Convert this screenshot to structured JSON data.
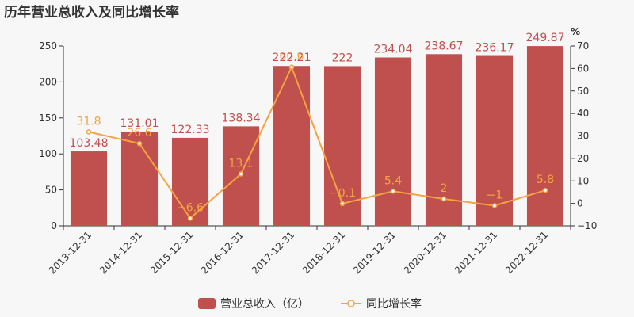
{
  "title": "历年营业总收入及同比增长率",
  "right_axis_unit": "%",
  "colors": {
    "bar": "#c0504d",
    "line": "#f4a340",
    "axis": "#333333",
    "grid": "#e6e6e6"
  },
  "chart_data": {
    "type": "bar",
    "title": "历年营业总收入及同比增长率",
    "categories": [
      "2013-12-31",
      "2014-12-31",
      "2015-12-31",
      "2016-12-31",
      "2017-12-31",
      "2018-12-31",
      "2019-12-31",
      "2020-12-31",
      "2021-12-31",
      "2022-12-31"
    ],
    "series": [
      {
        "name": "营业总收入（亿）",
        "type": "bar",
        "axis": "left",
        "values": [
          103.48,
          131.01,
          122.33,
          138.34,
          222.21,
          222,
          234.04,
          238.67,
          236.17,
          249.87
        ],
        "labels": [
          "103.48",
          "131.01",
          "122.33",
          "138.34",
          "222.21",
          "222",
          "234.04",
          "238.67",
          "236.17",
          "249.87"
        ]
      },
      {
        "name": "同比增长率",
        "type": "line",
        "axis": "right",
        "values": [
          31.8,
          26.6,
          -6.6,
          13.1,
          60.6,
          -0.1,
          5.4,
          2,
          -1,
          5.8
        ],
        "labels": [
          "31.8",
          "26.6",
          "−6.6",
          "13.1",
          "60.6",
          "−0.1",
          "5.4",
          "2",
          "−1",
          "5.8"
        ]
      }
    ],
    "y_left": {
      "min": 0,
      "max": 250,
      "ticks": [
        "0",
        "50",
        "100",
        "150",
        "200",
        "250"
      ]
    },
    "y_right": {
      "min": -10,
      "max": 70,
      "ticks": [
        "−10",
        "0",
        "10",
        "20",
        "30",
        "40",
        "50",
        "60",
        "70"
      ],
      "unit": "%"
    },
    "legend": {
      "position": "bottom-center",
      "items": [
        "营业总收入（亿）",
        "同比增长率"
      ]
    },
    "grid": false
  }
}
